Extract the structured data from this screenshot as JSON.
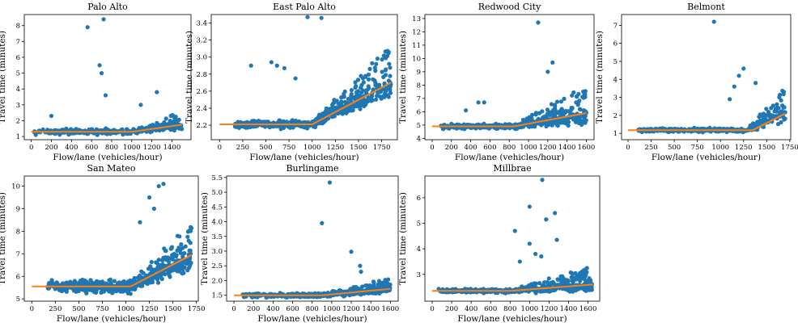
{
  "colors": {
    "scatter": "#1f77b4",
    "fit": "#ff7f0e",
    "axes": "#000000"
  },
  "chart_data": [
    {
      "type": "scatter",
      "title": "Palo Alto",
      "xlabel": "Flow/lane (vehicles/hour)",
      "ylabel": "Travel time (minutes)",
      "xlim": [
        -70,
        1590
      ],
      "ylim": [
        0.8,
        8.7
      ],
      "xticks": [
        0,
        200,
        400,
        600,
        800,
        1000,
        1200,
        1400
      ],
      "yticks": [
        1,
        2,
        3,
        4,
        5,
        6,
        7,
        8
      ],
      "fit": [
        [
          0,
          1.3
        ],
        [
          1000,
          1.3
        ],
        [
          1500,
          1.75
        ]
      ],
      "cloud": {
        "n": 340,
        "seed": 11,
        "xmin": 20,
        "xmax": 1500,
        "bp": 1000,
        "base": 1.3,
        "slope": 0.0009,
        "noise": 0.12,
        "spread": 0.75,
        "curve": 1.4
      },
      "outliers": [
        [
          720,
          8.4
        ],
        [
          560,
          7.9
        ],
        [
          680,
          5.5
        ],
        [
          700,
          5.0
        ],
        [
          740,
          3.6
        ],
        [
          200,
          2.3
        ],
        [
          1090,
          3.0
        ],
        [
          1250,
          3.8
        ]
      ]
    },
    {
      "type": "scatter",
      "title": "East Palo Alto",
      "xlabel": "Flow/lane (vehicles/hour)",
      "ylabel": "Travel time (minutes)",
      "xlim": [
        -90,
        1920
      ],
      "ylim": [
        2.03,
        3.5
      ],
      "xticks": [
        0,
        250,
        500,
        750,
        1000,
        1250,
        1500,
        1750
      ],
      "yticks": [
        2.2,
        2.4,
        2.6,
        2.8,
        3.0,
        3.2,
        3.4
      ],
      "fit": [
        [
          0,
          2.21
        ],
        [
          1000,
          2.21
        ],
        [
          1850,
          2.7
        ]
      ],
      "cloud": {
        "n": 520,
        "seed": 23,
        "xmin": 150,
        "xmax": 1850,
        "bp": 1000,
        "base": 2.21,
        "slope": 0.00058,
        "noise": 0.03,
        "spread": 0.45,
        "curve": 1.2
      },
      "outliers": [
        [
          950,
          3.47
        ],
        [
          1100,
          3.46
        ],
        [
          340,
          2.9
        ],
        [
          560,
          2.94
        ],
        [
          620,
          2.9
        ],
        [
          700,
          2.87
        ],
        [
          820,
          2.75
        ]
      ]
    },
    {
      "type": "scatter",
      "title": "Redwood City",
      "xlabel": "Flow/lane (vehicles/hour)",
      "ylabel": "Travel time (minutes)",
      "xlim": [
        -75,
        1680
      ],
      "ylim": [
        3.9,
        13.3
      ],
      "xticks": [
        0,
        200,
        400,
        600,
        800,
        1000,
        1200,
        1400,
        1600
      ],
      "yticks": [
        4,
        5,
        6,
        7,
        8,
        9,
        10,
        11,
        12,
        13
      ],
      "fit": [
        [
          0,
          4.9
        ],
        [
          850,
          4.9
        ],
        [
          1600,
          5.9
        ]
      ],
      "cloud": {
        "n": 500,
        "seed": 37,
        "xmin": 80,
        "xmax": 1600,
        "bp": 850,
        "base": 4.9,
        "slope": 0.0013,
        "noise": 0.12,
        "spread": 2.2,
        "curve": 1.6
      },
      "outliers": [
        [
          1100,
          12.7
        ],
        [
          1250,
          9.7
        ],
        [
          1200,
          9.0
        ],
        [
          480,
          6.7
        ],
        [
          540,
          6.7
        ],
        [
          350,
          6.1
        ]
      ]
    },
    {
      "type": "scatter",
      "title": "Belmont",
      "xlabel": "Flow/lane (vehicles/hour)",
      "ylabel": "Travel time (minutes)",
      "xlim": [
        -70,
        1760
      ],
      "ylim": [
        0.65,
        7.6
      ],
      "xticks": [
        0,
        250,
        500,
        750,
        1000,
        1250,
        1500,
        1750
      ],
      "yticks": [
        1,
        2,
        3,
        4,
        5,
        6,
        7
      ],
      "fit": [
        [
          0,
          1.18
        ],
        [
          1350,
          1.18
        ],
        [
          1700,
          2.1
        ]
      ],
      "cloud": {
        "n": 440,
        "seed": 51,
        "xmin": 100,
        "xmax": 1700,
        "bp": 1300,
        "base": 1.18,
        "slope": 0.0025,
        "noise": 0.07,
        "spread": 1.6,
        "curve": 1.8
      },
      "outliers": [
        [
          930,
          7.2
        ],
        [
          1250,
          4.6
        ],
        [
          1200,
          4.2
        ],
        [
          1150,
          3.6
        ],
        [
          1380,
          3.8
        ],
        [
          1100,
          2.9
        ]
      ]
    },
    {
      "type": "scatter",
      "title": "San Mateo",
      "xlabel": "Flow/lane (vehicles/hour)",
      "ylabel": "Travel time (minutes)",
      "xlim": [
        -80,
        1770
      ],
      "ylim": [
        4.9,
        10.45
      ],
      "xticks": [
        0,
        250,
        500,
        750,
        1000,
        1250,
        1500,
        1750
      ],
      "yticks": [
        5,
        6,
        7,
        8,
        9,
        10
      ],
      "fit": [
        [
          0,
          5.55
        ],
        [
          1050,
          5.55
        ],
        [
          1700,
          6.95
        ]
      ],
      "cloud": {
        "n": 560,
        "seed": 67,
        "xmin": 150,
        "xmax": 1700,
        "bp": 1050,
        "base": 5.55,
        "slope": 0.0021,
        "noise": 0.18,
        "spread": 1.4,
        "curve": 1.5
      },
      "outliers": [
        [
          1350,
          10.0
        ],
        [
          1400,
          10.1
        ],
        [
          1250,
          9.5
        ],
        [
          1150,
          8.4
        ],
        [
          1300,
          9.0
        ]
      ]
    },
    {
      "type": "scatter",
      "title": "Burlingame",
      "xlabel": "Flow/lane (vehicles/hour)",
      "ylabel": "Travel time (minutes)",
      "xlim": [
        -75,
        1680
      ],
      "ylim": [
        1.3,
        5.55
      ],
      "xticks": [
        0,
        200,
        400,
        600,
        800,
        1000,
        1200,
        1400,
        1600
      ],
      "yticks": [
        1.5,
        2.0,
        2.5,
        3.0,
        3.5,
        4.0,
        4.5,
        5.0,
        5.5
      ],
      "fit": [
        [
          0,
          1.5
        ],
        [
          900,
          1.5
        ],
        [
          1600,
          1.72
        ]
      ],
      "cloud": {
        "n": 480,
        "seed": 79,
        "xmin": 60,
        "xmax": 1600,
        "bp": 900,
        "base": 1.5,
        "slope": 0.0003,
        "noise": 0.05,
        "spread": 0.35,
        "curve": 1.5
      },
      "outliers": [
        [
          980,
          5.33
        ],
        [
          900,
          3.95
        ],
        [
          1200,
          2.98
        ],
        [
          1290,
          2.5
        ],
        [
          1300,
          2.3
        ]
      ]
    },
    {
      "type": "scatter",
      "title": "Millbrae",
      "xlabel": "Flow/lane (vehicles/hour)",
      "ylabel": "Travel time (minutes)",
      "xlim": [
        -75,
        1720
      ],
      "ylim": [
        1.95,
        6.85
      ],
      "xticks": [
        0,
        200,
        400,
        600,
        800,
        1000,
        1200,
        1400,
        1600
      ],
      "yticks": [
        3,
        4,
        5,
        6
      ],
      "fit": [
        [
          0,
          2.35
        ],
        [
          800,
          2.35
        ],
        [
          1650,
          2.6
        ]
      ],
      "cloud": {
        "n": 520,
        "seed": 93,
        "xmin": 60,
        "xmax": 1640,
        "bp": 800,
        "base": 2.35,
        "slope": 0.0003,
        "noise": 0.05,
        "spread": 0.7,
        "curve": 1.6
      },
      "outliers": [
        [
          1130,
          6.7
        ],
        [
          1000,
          5.65
        ],
        [
          1170,
          5.15
        ],
        [
          1260,
          5.4
        ],
        [
          850,
          4.7
        ],
        [
          1000,
          4.2
        ],
        [
          1280,
          4.35
        ],
        [
          1060,
          3.8
        ],
        [
          1120,
          3.7
        ],
        [
          900,
          3.5
        ]
      ]
    }
  ]
}
